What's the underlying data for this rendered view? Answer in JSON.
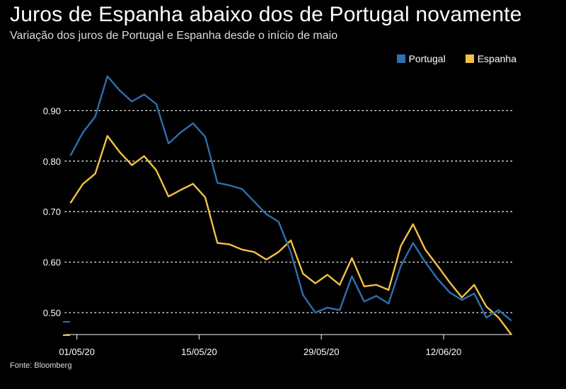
{
  "header": {
    "title": "Juros de Espanha abaixo dos de Portugal novamente",
    "subtitle": "Variação dos juros de Portugal e Espanha desde o início de maio"
  },
  "footer": {
    "source": "Fonte: Bloomberg"
  },
  "colors": {
    "portugal": "#2e6fb0",
    "espanha": "#f2c146",
    "grid": "#ffffff",
    "background": "#000000"
  },
  "chart_data": {
    "type": "line",
    "title": "Juros de Espanha abaixo dos de Portugal novamente",
    "subtitle": "Variação dos juros de Portugal e Espanha desde o início de maio",
    "xlabel": "",
    "ylabel": "",
    "ylim": [
      0.455,
      0.98
    ],
    "yticks": [
      0.5,
      0.6,
      0.7,
      0.8,
      0.9
    ],
    "ytick_labels": [
      "0.50",
      "0.60",
      "0.70",
      "0.80",
      "0.90"
    ],
    "xtick_labels": [
      "01/05/20",
      "15/05/20",
      "29/05/20",
      "12/06/20"
    ],
    "xtick_index": [
      0.5,
      10.5,
      20.5,
      30.5
    ],
    "grid": "horizontal dotted",
    "legend_position": "top-right",
    "series": [
      {
        "name": "Portugal",
        "values": [
          0.812,
          0.857,
          0.888,
          0.968,
          0.94,
          0.918,
          0.932,
          0.913,
          0.835,
          0.857,
          0.875,
          0.848,
          0.757,
          0.752,
          0.745,
          0.72,
          0.695,
          0.68,
          0.62,
          0.535,
          0.5,
          0.51,
          0.505,
          0.572,
          0.522,
          0.533,
          0.518,
          0.592,
          0.638,
          0.6,
          0.567,
          0.54,
          0.525,
          0.538,
          0.49,
          0.505,
          0.485
        ]
      },
      {
        "name": "Espanha",
        "values": [
          0.718,
          0.755,
          0.775,
          0.85,
          0.818,
          0.792,
          0.81,
          0.782,
          0.73,
          0.743,
          0.755,
          0.728,
          0.638,
          0.635,
          0.625,
          0.62,
          0.605,
          0.62,
          0.643,
          0.577,
          0.558,
          0.575,
          0.555,
          0.608,
          0.552,
          0.555,
          0.545,
          0.632,
          0.675,
          0.625,
          0.593,
          0.56,
          0.53,
          0.555,
          0.512,
          0.49,
          0.458
        ]
      }
    ]
  }
}
